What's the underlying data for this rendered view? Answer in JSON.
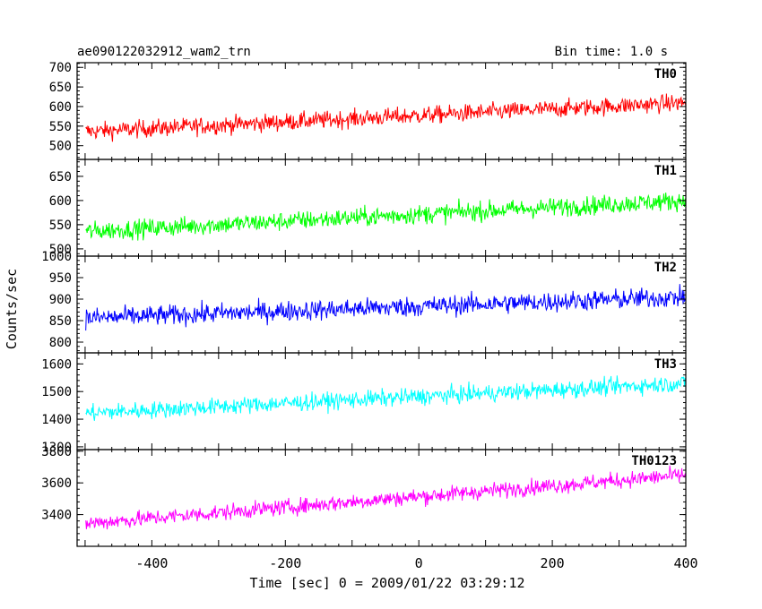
{
  "header": {
    "title": "ae090122032912_wam2_trn",
    "bin_time": "Bin time: 1.0 s"
  },
  "axes": {
    "xlabel": "Time [sec] 0 = 2009/01/22 03:29:12",
    "ylabel": "Counts/sec"
  },
  "chart_data": {
    "type": "line",
    "x_range": [
      -512,
      400
    ],
    "x_step": 1,
    "x_ticks": [
      -400,
      -200,
      0,
      200,
      400
    ],
    "panels": [
      {
        "name": "TH0",
        "color": "#ff0000",
        "ylim": [
          465,
          712
        ],
        "yticks": [
          500,
          550,
          600,
          650,
          700
        ],
        "trend_start": 535,
        "trend_end": 610,
        "noise_amplitude": 40
      },
      {
        "name": "TH1",
        "color": "#00ff00",
        "ylim": [
          485,
          685
        ],
        "yticks": [
          500,
          550,
          600,
          650
        ],
        "trend_start": 535,
        "trend_end": 600,
        "noise_amplitude": 35
      },
      {
        "name": "TH2",
        "color": "#0000ff",
        "ylim": [
          775,
          1000
        ],
        "yticks": [
          800,
          850,
          900,
          950,
          1000
        ],
        "trend_start": 855,
        "trend_end": 905,
        "noise_amplitude": 42
      },
      {
        "name": "TH3",
        "color": "#00ffff",
        "ylim": [
          1290,
          1640
        ],
        "yticks": [
          1300,
          1400,
          1500,
          1600
        ],
        "trend_start": 1420,
        "trend_end": 1530,
        "noise_amplitude": 55
      },
      {
        "name": "TH0123",
        "color": "#ff00ff",
        "ylim": [
          3200,
          3810
        ],
        "yticks": [
          3400,
          3600,
          3800
        ],
        "trend_start": 3340,
        "trend_end": 3650,
        "noise_amplitude": 90
      }
    ]
  }
}
